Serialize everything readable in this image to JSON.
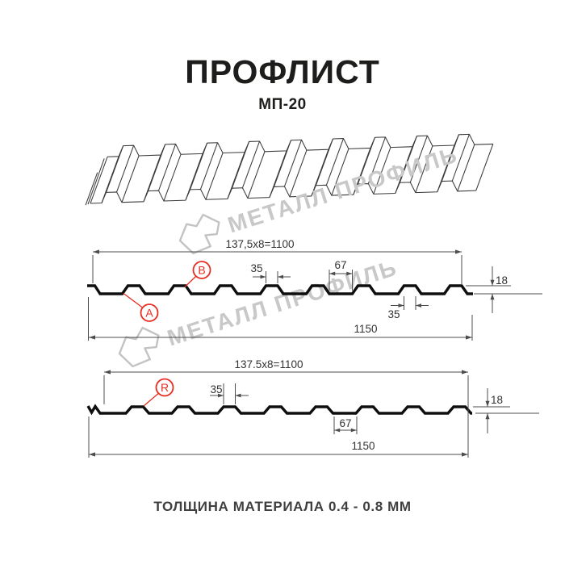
{
  "header": {
    "title": "ПРОФЛИСТ",
    "subtitle": "МП-20"
  },
  "footer": {
    "text": "ТОЛЩИНА МАТЕРИАЛА 0.4 - 0.8 ММ"
  },
  "watermark": {
    "text": "МЕТАЛЛ ПРОФИЛЬ"
  },
  "colors": {
    "accent_red": "#e72c21",
    "profile_line": "#0e0e0e",
    "dimension_line": "#4d4d4d",
    "watermark_gray": "#c8c8c8",
    "text_dark": "#1d1d1b"
  },
  "profile_top": {
    "module_dim": "137,5x8=1100",
    "crest_width": "35",
    "valley_width": "67",
    "height": "18",
    "crest_width_bottom": "35",
    "overall_width": "1150",
    "markers": {
      "a": "A",
      "b": "B"
    }
  },
  "profile_bottom": {
    "module_dim": "137.5x8=1100",
    "crest_width": "35",
    "valley_width": "67",
    "height": "18",
    "overall_width": "1150",
    "markers": {
      "r": "R"
    }
  }
}
